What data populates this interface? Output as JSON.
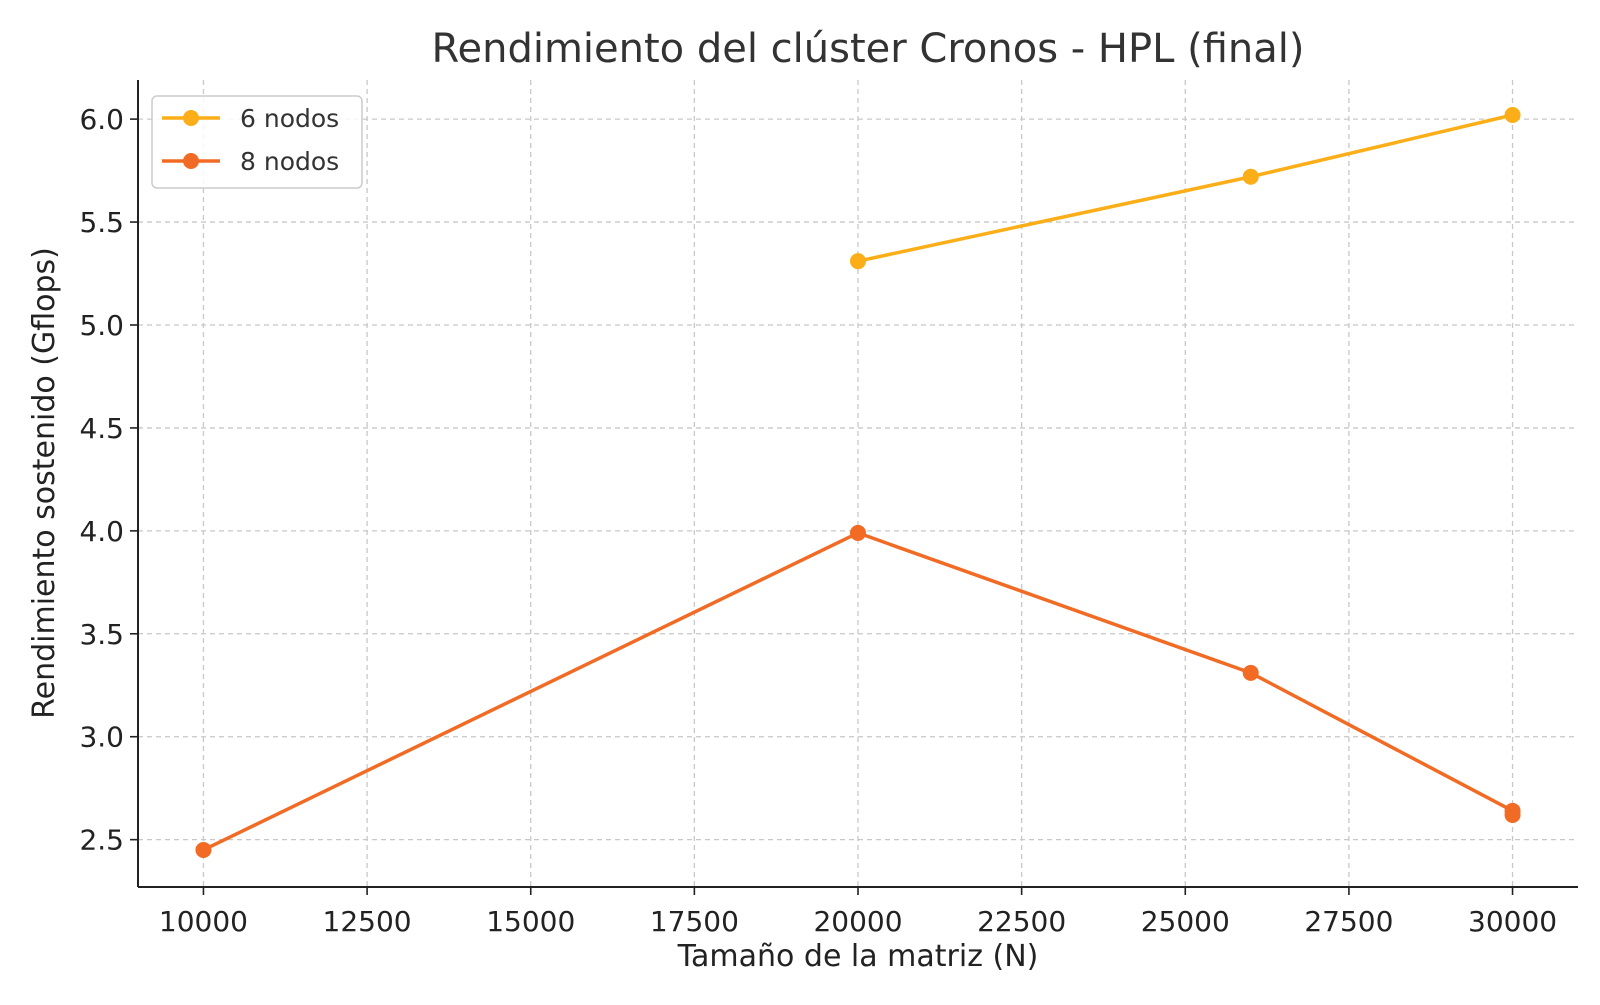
{
  "chart_data": {
    "type": "line",
    "title": "Rendimiento del clúster Cronos - HPL (final)",
    "xlabel": "Tamaño de la matriz (N)",
    "ylabel": "Rendimiento sostenido (Gflops)",
    "xlim": [
      9000,
      31000
    ],
    "ylim": [
      2.27,
      6.19
    ],
    "xticks": [
      10000,
      12500,
      15000,
      17500,
      20000,
      22500,
      25000,
      27500,
      30000
    ],
    "yticks": [
      2.5,
      3.0,
      3.5,
      4.0,
      4.5,
      5.0,
      5.5,
      6.0
    ],
    "ytick_labels": [
      "2.5",
      "3.0",
      "3.5",
      "4.0",
      "4.5",
      "5.0",
      "5.5",
      "6.0"
    ],
    "grid": true,
    "legend_position": "top-left",
    "series": [
      {
        "name": "6 nodos",
        "color": "#FBAE17",
        "points": [
          {
            "x": 20000,
            "y": 5.31
          },
          {
            "x": 26000,
            "y": 5.72
          },
          {
            "x": 30000,
            "y": 6.02
          }
        ]
      },
      {
        "name": "8 nodos",
        "color": "#F26B24",
        "points": [
          {
            "x": 10000,
            "y": 2.45
          },
          {
            "x": 20000,
            "y": 3.99
          },
          {
            "x": 26000,
            "y": 3.31
          },
          {
            "x": 30000,
            "y": 2.64
          },
          {
            "x": 30000,
            "y": 2.62
          }
        ]
      }
    ]
  }
}
